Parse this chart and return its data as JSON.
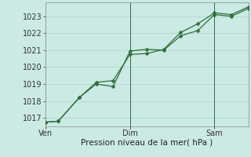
{
  "title": "",
  "xlabel": "Pression niveau de la mer( hPa )",
  "ylim": [
    1016.5,
    1023.8
  ],
  "yticks": [
    1017,
    1018,
    1019,
    1020,
    1021,
    1022,
    1023
  ],
  "bg_color": "#cceae4",
  "grid_color": "#aad4cc",
  "line_color": "#2d6e3a",
  "vline_color": "#2d6e3a",
  "xtick_positions": [
    0,
    10,
    20
  ],
  "xtick_labels": [
    "Ven",
    "Dim",
    "Sam"
  ],
  "vlines": [
    10,
    20
  ],
  "series1_x": [
    0,
    1.5,
    4,
    6,
    8,
    10,
    12,
    14,
    16,
    18,
    20,
    22,
    24
  ],
  "series1_y": [
    1016.75,
    1016.8,
    1018.2,
    1019.0,
    1018.85,
    1020.95,
    1021.05,
    1021.0,
    1021.85,
    1022.15,
    1023.1,
    1023.0,
    1023.45
  ],
  "series2_x": [
    0,
    1.5,
    4,
    6,
    8,
    10,
    12,
    14,
    16,
    18,
    20,
    22,
    24
  ],
  "series2_y": [
    1016.75,
    1016.8,
    1018.2,
    1019.1,
    1019.2,
    1020.75,
    1020.8,
    1021.05,
    1022.05,
    1022.55,
    1023.2,
    1023.1,
    1023.55
  ],
  "marker_size": 2.5,
  "linewidth": 0.9,
  "font_size_label": 7.5,
  "font_size_tick": 7
}
